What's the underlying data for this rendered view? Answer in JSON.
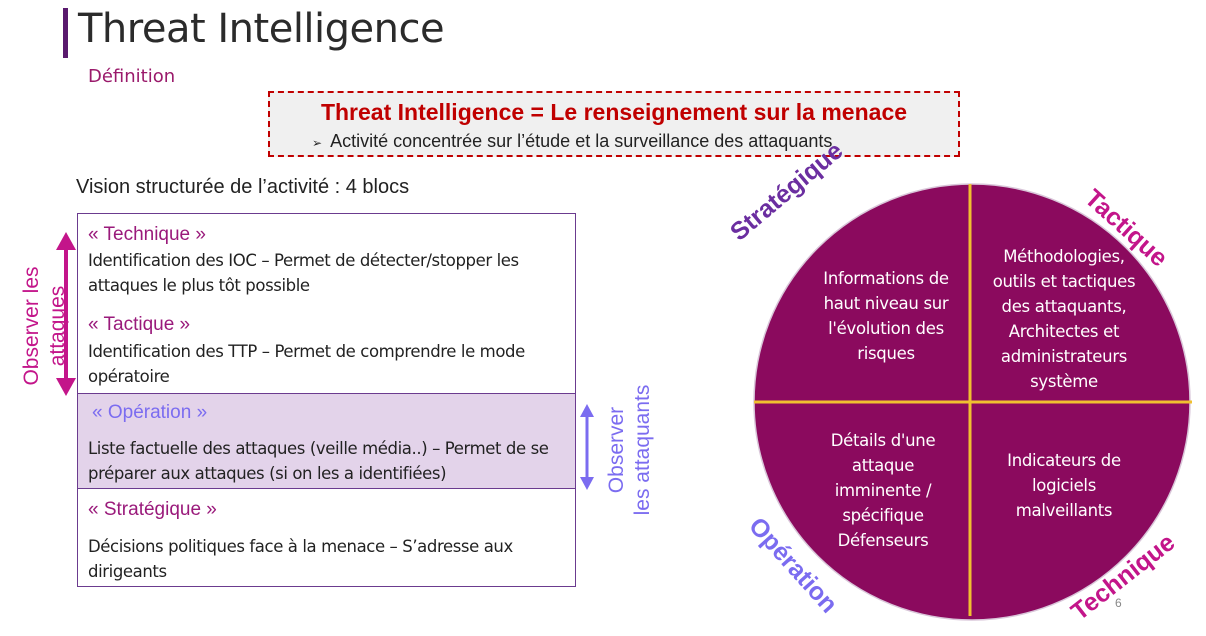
{
  "header": {
    "title": "Threat Intelligence",
    "subtitle": "Définition"
  },
  "definition": {
    "title": "Threat Intelligence = Le renseignement sur la menace",
    "line": "Activité concentrée sur l’étude et la surveillance des attaquants",
    "bullet": "➢"
  },
  "vision": "Vision structurée de l’activité : 4 blocs",
  "blocks": [
    {
      "heading": "« Technique »",
      "lines": [
        "Identification des IOC – Permet de détecter/stopper les",
        "attaques le plus tôt possible"
      ]
    },
    {
      "heading": "« Tactique »",
      "lines": [
        "Identification des TTP  – Permet de comprendre le mode",
        "opératoire"
      ]
    },
    {
      "heading": "« Opération »",
      "lines": [
        "Liste factuelle des attaques (veille média..) – Permet de se",
        "préparer aux attaques (si on les a identifiées)"
      ]
    },
    {
      "heading": "« Stratégique »",
      "lines": [
        "Décisions politiques face à la menace – S’adresse aux",
        "dirigeants"
      ]
    }
  ],
  "side_labels": {
    "left": [
      "Observer les",
      "attaques"
    ],
    "right": [
      "Observer",
      "les attaquants"
    ]
  },
  "circle": {
    "quadrants": {
      "top_left": [
        "Informations de",
        "haut niveau sur",
        "l'évolution des",
        "risques"
      ],
      "top_right": [
        "Méthodologies,",
        "outils et tactiques",
        "des attaquants,",
        "Architectes et",
        "administrateurs",
        "système"
      ],
      "bottom_left": [
        "Détails d'une",
        "attaque",
        "imminente /",
        "spécifique",
        "Défenseurs"
      ],
      "bottom_right": [
        "Indicateurs de",
        "logiciels",
        "malveillants"
      ]
    },
    "labels": {
      "strategique": "Stratégique",
      "tactique": "Tactique",
      "operation": "Opération",
      "technique": "Technique"
    },
    "fill": "#8b0a5e",
    "divider": "#f0c030"
  },
  "colors": {
    "magenta": "#c3158a",
    "violet": "#6b2ea0",
    "lavender": "#7b6cf0",
    "red": "#c00000"
  },
  "page_number": "6"
}
